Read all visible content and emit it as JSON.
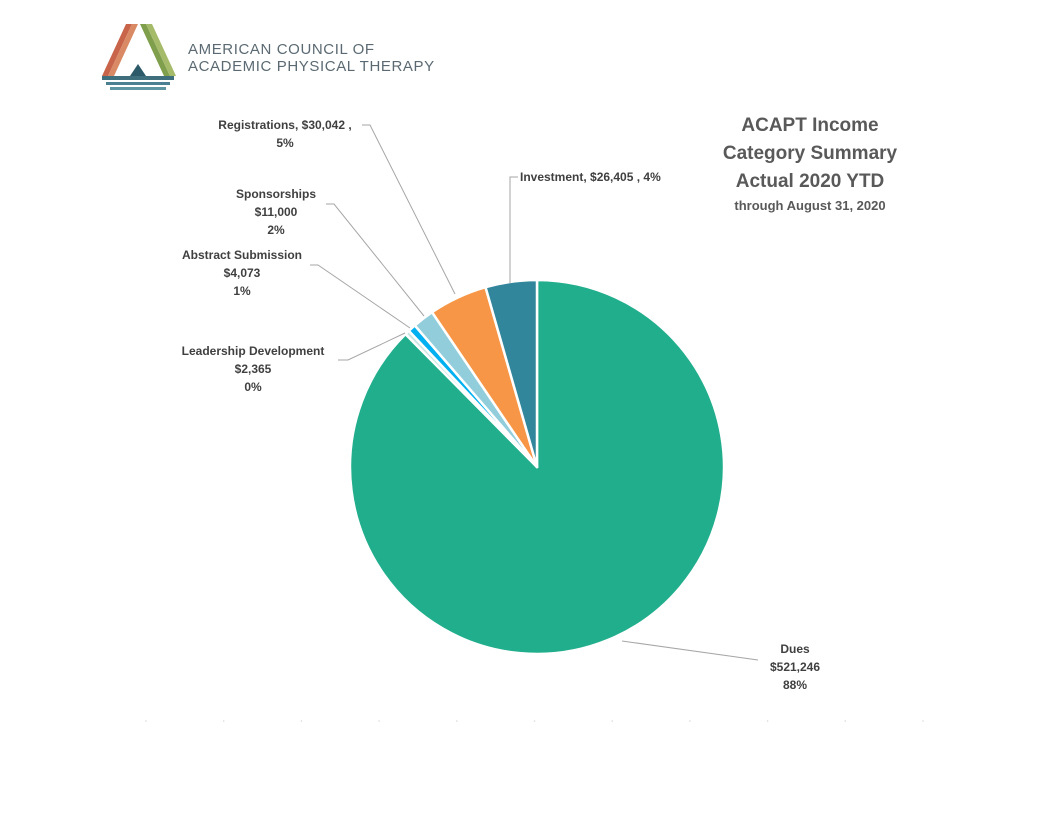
{
  "logo": {
    "line1": "AMERICAN COUNCIL OF",
    "line2": "ACADEMIC PHYSICAL THERAPY"
  },
  "colors": {
    "dues": "#21ae8c",
    "investment": "#31869b",
    "registrations": "#f79646",
    "sponsorships": "#92cddc",
    "abstract": "#00b0f0",
    "leadership": "#c6e6e3"
  },
  "chart_data": {
    "type": "pie",
    "title": "ACAPT Income",
    "title_lines": [
      "ACAPT Income",
      "Category Summary",
      "Actual 2020 YTD"
    ],
    "subtitle": "through August 31, 2020",
    "slices": [
      {
        "name": "Dues",
        "value": 521246,
        "value_label": "$521,246",
        "percent_label": "88%",
        "color": "#21ae8c"
      },
      {
        "name": "Leadership Development",
        "value": 2365,
        "value_label": "$2,365",
        "percent_label": "0%",
        "color": "#c6e6e3"
      },
      {
        "name": "Abstract Submission",
        "value": 4073,
        "value_label": "$4,073",
        "percent_label": "1%",
        "color": "#00b0f0"
      },
      {
        "name": "Sponsorships",
        "value": 11000,
        "value_label": "$11,000",
        "percent_label": "2%",
        "color": "#92cddc"
      },
      {
        "name": "Registrations",
        "value": 30042,
        "value_label": "$30,042",
        "percent_label": "5%",
        "color": "#f79646"
      },
      {
        "name": "Investment",
        "value": 26405,
        "value_label": "$26,405",
        "percent_label": "4%",
        "color": "#31869b"
      }
    ],
    "labels": {
      "dues": {
        "line1": "Dues",
        "line2": "$521,246",
        "line3": "88%"
      },
      "leadership": {
        "line1": "Leadership Development",
        "line2": "$2,365",
        "line3": "0%"
      },
      "abstract": {
        "line1": "Abstract Submission",
        "line2": "$4,073",
        "line3": "1%"
      },
      "sponsorships": {
        "line1": "Sponsorships",
        "line2": "$11,000",
        "line3": "2%"
      },
      "registrations": {
        "line1": "Registrations,  $30,042 ,",
        "line2": "5%"
      },
      "investment": {
        "line1": "Investment,  $26,405 , 4%"
      }
    }
  }
}
